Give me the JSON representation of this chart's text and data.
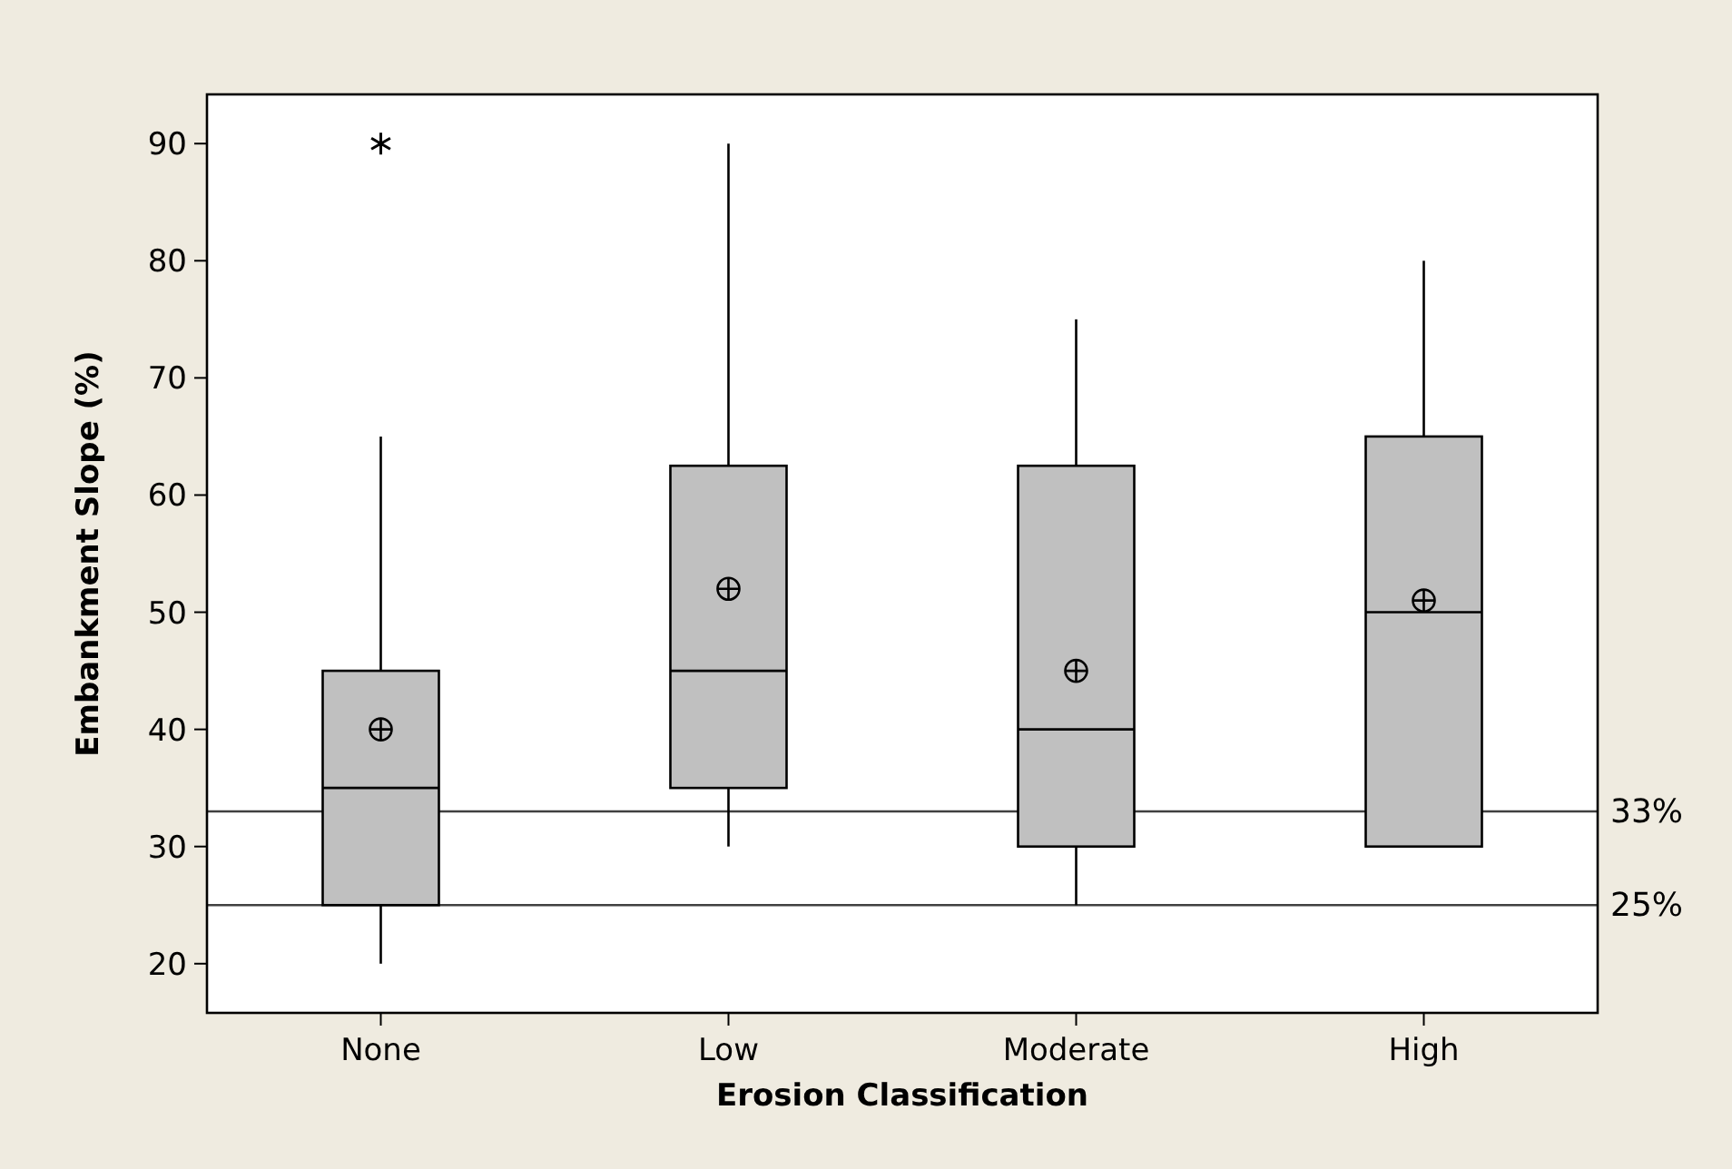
{
  "chart_data": {
    "type": "box",
    "xlabel": "Erosion Classification",
    "ylabel": "Embankment Slope (%)",
    "categories": [
      "None",
      "Low",
      "Moderate",
      "High"
    ],
    "color": "#c0c0c0",
    "boxes": [
      {
        "low": 20,
        "q1": 25,
        "median": 35,
        "q3": 45,
        "high": 65,
        "mean": 40,
        "outliers": [
          90
        ]
      },
      {
        "low": 30,
        "q1": 35,
        "median": 45,
        "q3": 62.5,
        "high": 90,
        "mean": 52
      },
      {
        "low": 25,
        "q1": 30,
        "median": 40,
        "q3": 62.5,
        "high": 75,
        "mean": 45
      },
      {
        "low": 30,
        "q1": 30,
        "median": 50,
        "q3": 65,
        "high": 80,
        "mean": 51
      }
    ],
    "ylim": [
      15.8,
      94.2
    ],
    "yticks": [
      20,
      30,
      40,
      50,
      60,
      70,
      80,
      90
    ],
    "grid": false,
    "ref_lines": [
      {
        "axis": "y",
        "value": 33,
        "label": "33%",
        "color": "#404040"
      },
      {
        "axis": "y",
        "value": 25,
        "label": "25%",
        "color": "#404040"
      }
    ]
  }
}
